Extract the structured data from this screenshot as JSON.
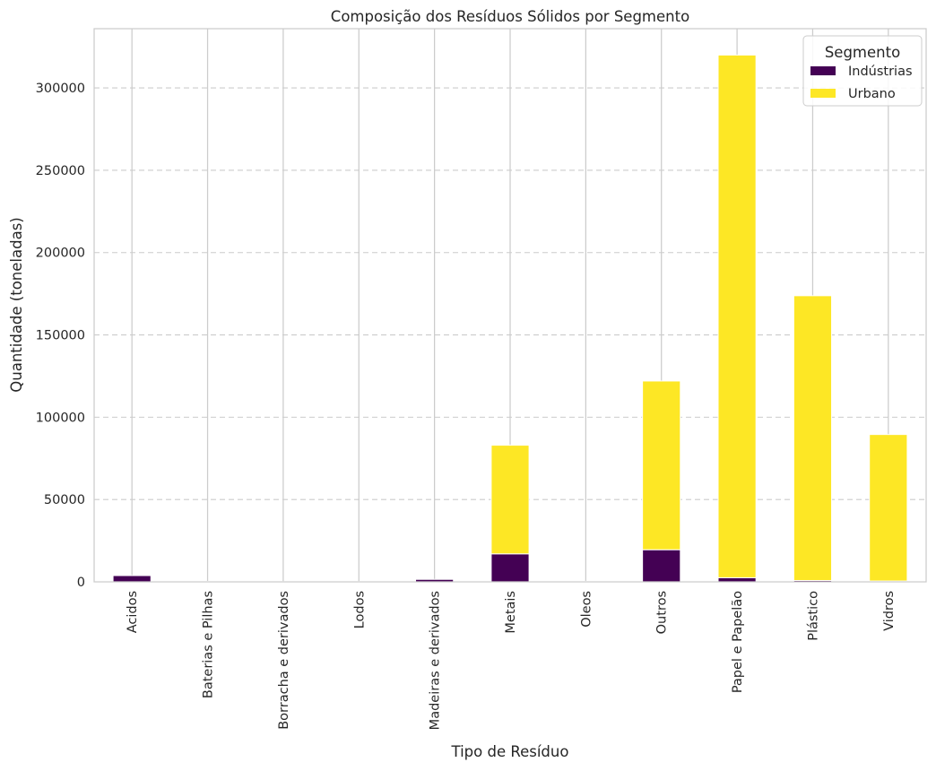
{
  "chart_data": {
    "type": "bar",
    "stacked": true,
    "title": "Composição dos Resíduos Sólidos por Segmento",
    "xlabel": "Tipo de Resíduo",
    "ylabel": "Quantidade (toneladas)",
    "ylim": [
      0,
      336000
    ],
    "yticks": [
      0,
      50000,
      100000,
      150000,
      200000,
      250000,
      300000
    ],
    "categories": [
      "Acidos",
      "Baterias e Pilhas",
      "Borracha e derivados",
      "Lodos",
      "Madeiras e derivados",
      "Metais",
      "Oleos",
      "Outros",
      "Papel e Papelão",
      "Plástico",
      "Vidros"
    ],
    "series": [
      {
        "name": "Indústrias",
        "color": "#440154",
        "values": [
          3800,
          300,
          200,
          200,
          1500,
          17000,
          300,
          19500,
          2500,
          800,
          500
        ]
      },
      {
        "name": "Urbano",
        "color": "#fde725",
        "values": [
          0,
          0,
          0,
          0,
          0,
          66000,
          0,
          102500,
          317500,
          173000,
          89000
        ]
      }
    ],
    "legend": {
      "title": "Segmento",
      "placement": "top-right"
    },
    "grid": {
      "x": true,
      "y": true,
      "y_style": "dashed"
    }
  }
}
